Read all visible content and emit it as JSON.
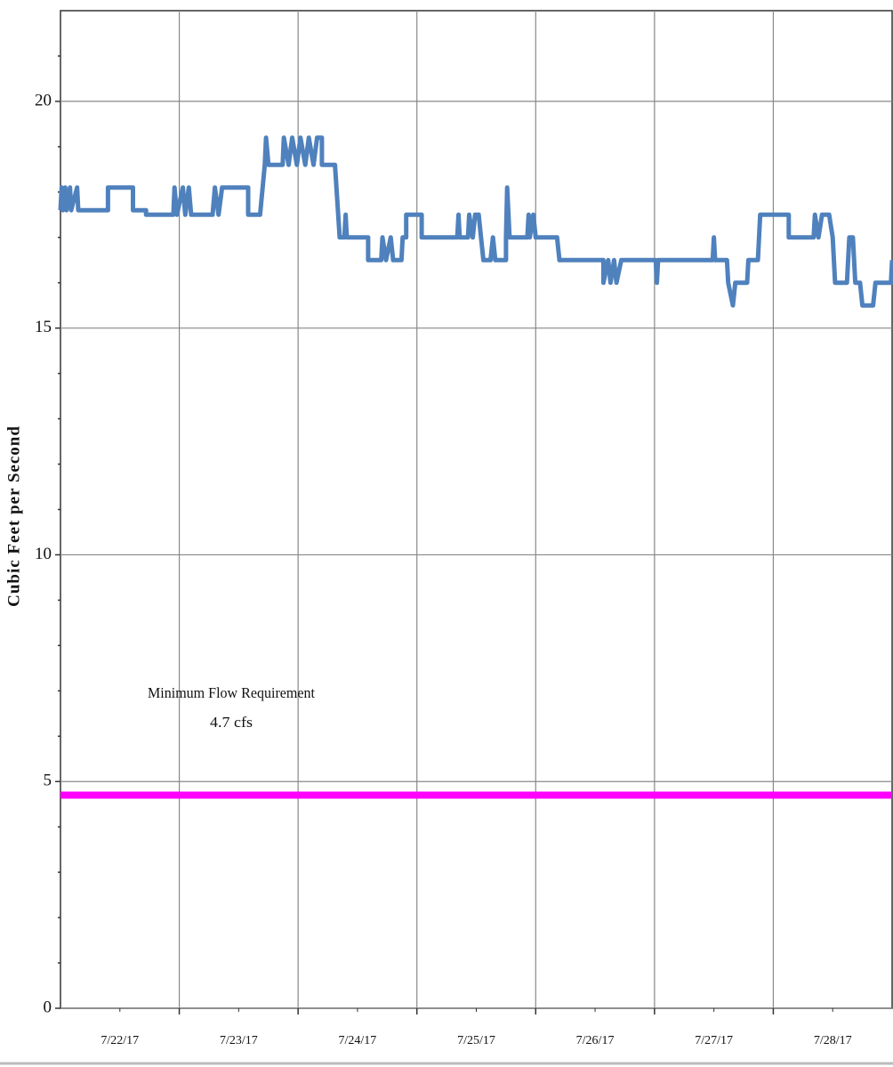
{
  "chart_data": {
    "type": "line",
    "ylabel": "Cubic Feet per Second",
    "color": "#4f81bd",
    "x": [
      0,
      0.01,
      0.02,
      0.04,
      0.05,
      0.08,
      0.09,
      0.14,
      0.15,
      0.4,
      0.4,
      0.61,
      0.61,
      0.72,
      0.72,
      0.95,
      0.96,
      0.98,
      1.03,
      1.05,
      1.08,
      1.1,
      1.28,
      1.3,
      1.33,
      1.36,
      1.4,
      1.58,
      1.58,
      1.68,
      1.72,
      1.73,
      1.75,
      1.87,
      1.88,
      1.92,
      1.95,
      1.99,
      2.02,
      2.06,
      2.09,
      2.13,
      2.16,
      2.2,
      2.2,
      2.31,
      2.35,
      2.39,
      2.4,
      2.41,
      2.59,
      2.59,
      2.7,
      2.71,
      2.74,
      2.78,
      2.8,
      2.87,
      2.88,
      2.91,
      2.91,
      3.04,
      3.04,
      3.34,
      3.35,
      3.36,
      3.43,
      3.44,
      3.47,
      3.49,
      3.52,
      3.54,
      3.56,
      3.62,
      3.64,
      3.66,
      3.75,
      3.75,
      3.76,
      3.78,
      3.93,
      3.94,
      3.95,
      3.98,
      4.0,
      4.18,
      4.2,
      4.57,
      4.57,
      4.61,
      4.63,
      4.66,
      4.68,
      4.72,
      4.75,
      5.01,
      5.02,
      5.03,
      5.49,
      5.5,
      5.51,
      5.61,
      5.62,
      5.66,
      5.68,
      5.78,
      5.79,
      5.87,
      5.89,
      6.13,
      6.13,
      6.34,
      6.35,
      6.38,
      6.41,
      6.47,
      6.5,
      6.52,
      6.62,
      6.64,
      6.67,
      6.69,
      6.73,
      6.75,
      6.84,
      6.86,
      6.99,
      7.0
    ],
    "values": [
      17.6,
      18.1,
      17.6,
      18.1,
      17.6,
      18.1,
      17.6,
      18.1,
      17.6,
      17.6,
      18.1,
      18.1,
      17.6,
      17.6,
      17.5,
      17.5,
      18.1,
      17.5,
      18.1,
      17.5,
      18.1,
      17.5,
      17.5,
      18.1,
      17.5,
      18.1,
      18.1,
      18.1,
      17.5,
      17.5,
      18.6,
      19.2,
      18.6,
      18.6,
      19.2,
      18.6,
      19.2,
      18.6,
      19.2,
      18.6,
      19.2,
      18.6,
      19.2,
      19.2,
      18.6,
      18.6,
      17.0,
      17.0,
      17.5,
      17.0,
      17.0,
      16.5,
      16.5,
      17.0,
      16.5,
      17.0,
      16.5,
      16.5,
      17.0,
      17.0,
      17.5,
      17.5,
      17.0,
      17.0,
      17.5,
      17.0,
      17.0,
      17.5,
      17.0,
      17.5,
      17.5,
      17.0,
      16.5,
      16.5,
      17.0,
      16.5,
      16.5,
      17.0,
      18.1,
      17.0,
      17.0,
      17.5,
      17.0,
      17.5,
      17.0,
      17.0,
      16.5,
      16.5,
      16.0,
      16.5,
      16.0,
      16.5,
      16.0,
      16.5,
      16.5,
      16.5,
      16.0,
      16.5,
      16.5,
      17.0,
      16.5,
      16.5,
      16.0,
      15.5,
      16.0,
      16.0,
      16.5,
      16.5,
      17.5,
      17.5,
      17.0,
      17.0,
      17.5,
      17.0,
      17.5,
      17.5,
      17.0,
      16.0,
      16.0,
      17.0,
      17.0,
      16.0,
      16.0,
      15.5,
      15.5,
      16.0,
      16.0,
      16.5
    ],
    "xlim": [
      0,
      7
    ],
    "xticks": [
      {
        "value": 0.5,
        "label": "7/22/17"
      },
      {
        "value": 1.5,
        "label": "7/23/17"
      },
      {
        "value": 2.5,
        "label": "7/24/17"
      },
      {
        "value": 3.5,
        "label": "7/25/17"
      },
      {
        "value": 4.5,
        "label": "7/26/17"
      },
      {
        "value": 5.5,
        "label": "7/27/17"
      },
      {
        "value": 6.5,
        "label": "7/28/17"
      }
    ],
    "xgrid": [
      1,
      2,
      3,
      4,
      5,
      6
    ],
    "ylim": [
      0,
      22
    ],
    "yticks": [
      0,
      5,
      10,
      15,
      20
    ],
    "yminorticks": [
      1,
      2,
      3,
      4,
      6,
      7,
      8,
      9,
      11,
      12,
      13,
      14,
      16,
      17,
      18,
      19,
      21
    ],
    "grid": true,
    "reference": {
      "value": 4.7,
      "color": "#ff00ff"
    },
    "annotation": [
      "Minimum Flow Requirement",
      "4.7 cfs"
    ]
  }
}
